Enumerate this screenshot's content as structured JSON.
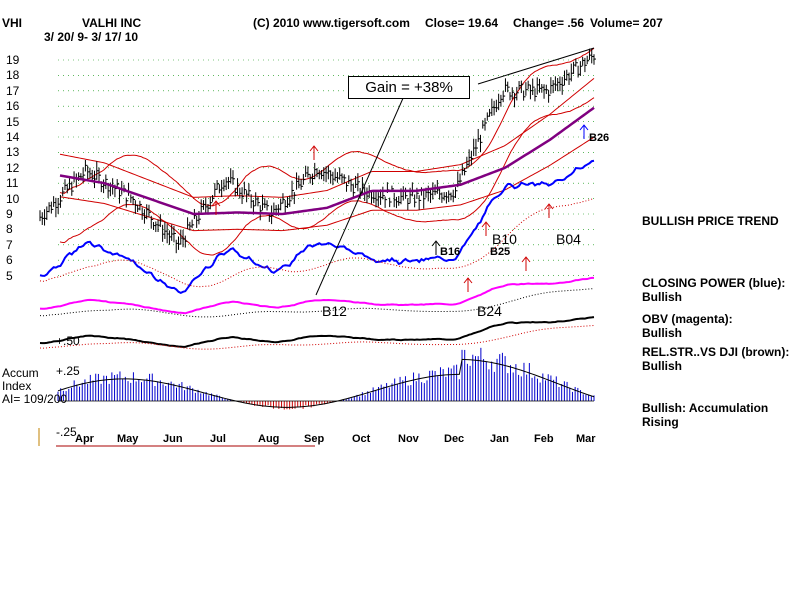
{
  "header": {
    "ticker": "VHI",
    "company": "VALHI INC",
    "date_range": "3/ 20/ 9-  3/ 17/ 10",
    "copyright": "(C) 2010 www.tigersoft.com",
    "close": "Close=  19.64",
    "change": "Change= .56",
    "volume": "Volume= 207"
  },
  "annotation": {
    "gain": "Gain = +38%"
  },
  "signals": {
    "b12": "B12",
    "b24": "B24",
    "b10": "B10",
    "b04": "B04",
    "b16": "B16",
    "b25": "B25",
    "b26": "B26"
  },
  "right_panel": {
    "trend": "BULLISH PRICE TREND",
    "closing_power": "CLOSING POWER (blue):",
    "closing_power_value": "Bullish",
    "obv": "OBV (magenta):",
    "obv_value": "Bullish",
    "relstr": "REL.STR..VS DJI (brown):",
    "relstr_value": "Bullish",
    "accum": "Bullish: Accumulation Rising"
  },
  "accum_panel": {
    "label1": "Accum",
    "label2": "Index",
    "label3": "AI= 109/200",
    "plus50": "+.50",
    "plus25": "+.25",
    "minus25": "-.25"
  },
  "colors": {
    "price_bars": "#000000",
    "bands": "#d00000",
    "ma": "#800080",
    "closing_power": "#0000ff",
    "obv": "#ff00ff",
    "relstr": "#000000",
    "accum_pos": "#0000cc",
    "accum_neg": "#cc0000"
  },
  "chart_data": {
    "type": "line",
    "y_ticks": [
      "19",
      "18",
      "17",
      "16",
      "15",
      "14",
      "13",
      "12",
      "11",
      "10",
      "9",
      "8",
      "7",
      "6",
      "5"
    ],
    "months": [
      "Apr",
      "May",
      "Jun",
      "Jul",
      "Aug",
      "Sep",
      "Oct",
      "Nov",
      "Dec",
      "Jan",
      "Feb",
      "Mar"
    ],
    "x": [
      "Mar",
      "Apr",
      "May",
      "Jun",
      "Jul",
      "Aug",
      "Sep",
      "Oct",
      "Nov",
      "Dec",
      "Jan",
      "Feb",
      "Mar"
    ],
    "series": [
      {
        "values": [
          8.8,
          11.8,
          10.0,
          7.0,
          11.3,
          9.0,
          12.0,
          10.5,
          10.0,
          10.5,
          17.0,
          17.0,
          19.3
        ]
      },
      {
        "values": [
          11.5,
          11.0,
          10.0,
          9.0,
          9.1,
          9.0,
          9.4,
          10.5,
          10.5,
          10.9,
          12.0,
          13.8,
          15.9
        ]
      }
    ],
    "ylim": [
      4.5,
      19.5
    ]
  }
}
